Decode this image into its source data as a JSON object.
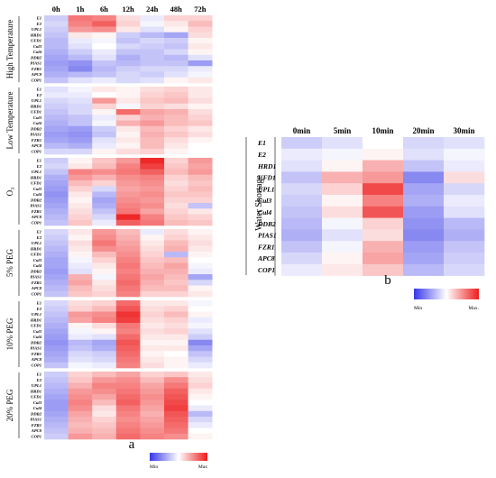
{
  "chart_data": [
    {
      "type": "heatmap",
      "panel_label": "a",
      "columns": [
        "0h",
        "1h",
        "6h",
        "12h",
        "24h",
        "48h",
        "72h"
      ],
      "rows": [
        "E1",
        "E2",
        "UPL1",
        "HRD1",
        "UFD1",
        "Cul3",
        "Cul4",
        "DDB2",
        "PIAS1",
        "FZR1",
        "APC8",
        "COP1"
      ],
      "value_range": [
        -1,
        1
      ],
      "colors": {
        "min": "#3838e8",
        "mid": "#ffffff",
        "max": "#ee1c1c"
      },
      "legend": {
        "min_label": "Min",
        "max_label": "Max"
      },
      "groups": [
        {
          "name": "High Temperature",
          "values": [
            [
              -0.25,
              0.6,
              0.55,
              0.15,
              -0.1,
              0.2,
              0.2
            ],
            [
              -0.2,
              0.55,
              0.7,
              0.2,
              -0.05,
              0.1,
              0.3
            ],
            [
              -0.25,
              0.45,
              0.5,
              0.1,
              -0.15,
              0.05,
              0.2
            ],
            [
              -0.3,
              0.1,
              0.05,
              -0.25,
              -0.35,
              -0.45,
              0.15
            ],
            [
              -0.35,
              -0.1,
              -0.05,
              -0.3,
              -0.2,
              -0.25,
              0.05
            ],
            [
              -0.35,
              -0.15,
              0.0,
              -0.2,
              -0.25,
              -0.3,
              0.1
            ],
            [
              -0.4,
              -0.25,
              -0.1,
              -0.3,
              -0.3,
              -0.2,
              0.05
            ],
            [
              -0.45,
              -0.35,
              -0.15,
              -0.4,
              -0.3,
              -0.35,
              -0.15
            ],
            [
              -0.5,
              -0.55,
              -0.3,
              -0.35,
              -0.3,
              -0.3,
              -0.5
            ],
            [
              -0.45,
              -0.6,
              -0.35,
              -0.25,
              -0.2,
              -0.2,
              -0.1
            ],
            [
              -0.4,
              -0.35,
              -0.3,
              -0.2,
              -0.25,
              -0.15,
              -0.05
            ],
            [
              -0.3,
              -0.15,
              -0.1,
              -0.2,
              -0.15,
              0.05,
              0.1
            ]
          ]
        },
        {
          "name": "Low Temperature",
          "values": [
            [
              -0.15,
              -0.05,
              0.1,
              0.05,
              0.15,
              0.2,
              0.1
            ],
            [
              -0.1,
              -0.1,
              0.0,
              0.05,
              0.2,
              0.25,
              0.1
            ],
            [
              -0.2,
              -0.15,
              0.45,
              0.1,
              0.25,
              0.3,
              0.15
            ],
            [
              -0.25,
              -0.2,
              0.2,
              -0.05,
              0.2,
              0.15,
              0.05
            ],
            [
              -0.3,
              -0.2,
              0.05,
              0.65,
              0.4,
              0.35,
              0.15
            ],
            [
              -0.35,
              -0.3,
              -0.1,
              0.2,
              0.35,
              0.3,
              0.2
            ],
            [
              -0.4,
              -0.3,
              -0.05,
              0.35,
              0.45,
              0.3,
              0.25
            ],
            [
              -0.45,
              -0.5,
              -0.25,
              0.1,
              0.3,
              0.2,
              0.1
            ],
            [
              -0.5,
              -0.55,
              -0.3,
              0.05,
              0.35,
              0.25,
              0.15
            ],
            [
              -0.45,
              -0.5,
              -0.15,
              0.1,
              0.3,
              0.15,
              0.05
            ],
            [
              -0.35,
              -0.4,
              -0.1,
              0.05,
              0.3,
              0.1,
              0.0
            ],
            [
              -0.2,
              -0.2,
              0.05,
              0.15,
              0.2,
              0.05,
              0.0
            ]
          ]
        },
        {
          "name": "O₃",
          "values": [
            [
              -0.25,
              0.05,
              0.25,
              0.45,
              0.95,
              0.2,
              0.45
            ],
            [
              -0.2,
              0.1,
              0.3,
              0.55,
              0.85,
              0.25,
              0.4
            ],
            [
              -0.3,
              0.55,
              0.5,
              0.6,
              0.7,
              0.3,
              0.45
            ],
            [
              -0.4,
              0.45,
              0.35,
              0.5,
              0.55,
              0.2,
              0.3
            ],
            [
              -0.45,
              0.3,
              0.2,
              0.45,
              0.5,
              0.15,
              0.25
            ],
            [
              -0.5,
              0.2,
              -0.2,
              0.4,
              0.45,
              0.2,
              0.3
            ],
            [
              -0.55,
              0.1,
              -0.35,
              0.45,
              0.5,
              0.25,
              0.25
            ],
            [
              -0.5,
              0.05,
              -0.45,
              0.5,
              0.45,
              0.2,
              0.2
            ],
            [
              -0.45,
              0.1,
              -0.4,
              0.55,
              0.5,
              0.15,
              -0.3
            ],
            [
              -0.4,
              0.15,
              -0.3,
              0.6,
              0.4,
              0.2,
              0.1
            ],
            [
              -0.35,
              0.2,
              -0.2,
              0.95,
              0.55,
              0.25,
              0.2
            ],
            [
              -0.3,
              0.25,
              -0.1,
              0.7,
              0.6,
              0.3,
              0.25
            ]
          ]
        },
        {
          "name": "5% PEG",
          "values": [
            [
              -0.2,
              0.1,
              0.45,
              0.3,
              -0.1,
              0.15,
              0.05
            ],
            [
              -0.25,
              0.05,
              0.5,
              0.35,
              0.05,
              0.2,
              0.1
            ],
            [
              -0.3,
              0.15,
              0.6,
              0.4,
              0.1,
              0.3,
              0.15
            ],
            [
              -0.35,
              0.1,
              0.5,
              0.45,
              0.15,
              0.35,
              0.1
            ],
            [
              -0.4,
              0.05,
              0.3,
              0.5,
              0.2,
              -0.35,
              0.05
            ],
            [
              -0.45,
              -0.05,
              0.2,
              0.55,
              0.25,
              0.3,
              0.0
            ],
            [
              -0.45,
              -0.1,
              0.1,
              0.6,
              0.3,
              0.4,
              -0.05
            ],
            [
              -0.5,
              -0.15,
              0.05,
              0.55,
              0.35,
              0.35,
              -0.1
            ],
            [
              -0.45,
              0.35,
              -0.05,
              0.6,
              0.4,
              0.3,
              -0.45
            ],
            [
              -0.4,
              0.4,
              0.1,
              0.65,
              0.35,
              0.25,
              -0.2
            ],
            [
              -0.35,
              0.3,
              0.15,
              0.6,
              0.3,
              0.3,
              0.05
            ],
            [
              -0.3,
              0.25,
              0.2,
              0.55,
              0.2,
              0.2,
              0.1
            ]
          ]
        },
        {
          "name": "10% PEG",
          "values": [
            [
              -0.2,
              0.15,
              0.2,
              0.65,
              0.1,
              0.1,
              -0.05
            ],
            [
              -0.25,
              0.2,
              0.3,
              0.75,
              0.15,
              0.2,
              0.0
            ],
            [
              -0.3,
              0.45,
              0.5,
              0.9,
              0.2,
              0.3,
              0.05
            ],
            [
              -0.35,
              0.4,
              0.55,
              0.85,
              0.15,
              0.2,
              -0.1
            ],
            [
              -0.4,
              0.05,
              0.15,
              0.6,
              0.1,
              0.15,
              -0.05
            ],
            [
              -0.45,
              -0.05,
              0.05,
              0.55,
              0.15,
              0.2,
              -0.15
            ],
            [
              -0.5,
              -0.1,
              -0.15,
              0.65,
              0.1,
              0.1,
              -0.25
            ],
            [
              -0.55,
              -0.35,
              -0.45,
              0.75,
              0.05,
              0.05,
              -0.6
            ],
            [
              -0.5,
              -0.3,
              -0.4,
              0.7,
              0.1,
              0.1,
              -0.45
            ],
            [
              -0.45,
              -0.2,
              -0.25,
              0.65,
              0.05,
              0.0,
              -0.3
            ],
            [
              -0.4,
              -0.15,
              -0.2,
              0.6,
              0.1,
              0.05,
              -0.2
            ],
            [
              -0.3,
              -0.05,
              -0.1,
              0.55,
              0.15,
              0.05,
              -0.1
            ]
          ]
        },
        {
          "name": "20% PEG",
          "values": [
            [
              -0.25,
              0.2,
              0.3,
              0.4,
              0.2,
              0.25,
              0.1
            ],
            [
              -0.3,
              0.25,
              0.45,
              0.5,
              0.3,
              0.5,
              0.15
            ],
            [
              -0.35,
              0.35,
              0.55,
              0.55,
              0.4,
              0.6,
              0.2
            ],
            [
              -0.4,
              0.45,
              0.5,
              0.6,
              0.45,
              0.7,
              0.1
            ],
            [
              -0.45,
              0.5,
              0.4,
              0.65,
              0.5,
              0.75,
              0.05
            ],
            [
              -0.5,
              0.55,
              0.3,
              0.7,
              0.45,
              0.8,
              0.0
            ],
            [
              -0.5,
              0.5,
              0.15,
              0.6,
              0.4,
              0.85,
              -0.1
            ],
            [
              -0.45,
              0.4,
              0.1,
              0.55,
              0.35,
              0.75,
              -0.35
            ],
            [
              -0.4,
              0.35,
              0.2,
              0.5,
              0.4,
              0.7,
              -0.2
            ],
            [
              -0.35,
              0.3,
              0.25,
              0.55,
              0.45,
              0.65,
              -0.1
            ],
            [
              -0.3,
              0.35,
              0.3,
              0.6,
              0.5,
              0.6,
              0.0
            ],
            [
              -0.25,
              0.45,
              0.35,
              0.65,
              0.55,
              0.5,
              0.05
            ]
          ]
        }
      ]
    },
    {
      "type": "heatmap",
      "panel_label": "b",
      "group_label": "Water Shortage",
      "columns": [
        "0min",
        "5min",
        "10min",
        "20min",
        "30min"
      ],
      "rows": [
        "E1",
        "E2",
        "HRD1",
        "UFD1",
        "UPL1",
        "Cul3",
        "Cul4",
        "DDB2",
        "PIAS1",
        "FZR1",
        "APC8",
        "COP1"
      ],
      "value_range": [
        -1,
        1
      ],
      "colors": {
        "min": "#3838e8",
        "mid": "#ffffff",
        "max": "#ee1c1c"
      },
      "legend": {
        "min_label": "Min",
        "max_label": "Max."
      },
      "values": [
        [
          -0.25,
          -0.15,
          0.0,
          -0.2,
          -0.15
        ],
        [
          -0.1,
          -0.05,
          0.05,
          -0.15,
          -0.05
        ],
        [
          -0.15,
          0.05,
          0.35,
          -0.3,
          -0.1
        ],
        [
          -0.3,
          0.35,
          0.45,
          -0.6,
          0.15
        ],
        [
          -0.2,
          0.2,
          0.8,
          -0.45,
          -0.2
        ],
        [
          -0.25,
          0.05,
          0.55,
          -0.4,
          -0.1
        ],
        [
          -0.3,
          0.15,
          0.75,
          -0.5,
          -0.15
        ],
        [
          -0.35,
          -0.05,
          0.2,
          -0.55,
          -0.35
        ],
        [
          -0.4,
          -0.15,
          0.15,
          -0.6,
          -0.4
        ],
        [
          -0.3,
          -0.05,
          0.35,
          -0.5,
          -0.3
        ],
        [
          -0.2,
          0.05,
          0.4,
          -0.45,
          -0.25
        ],
        [
          -0.1,
          0.1,
          0.25,
          -0.35,
          -0.2
        ]
      ]
    }
  ]
}
